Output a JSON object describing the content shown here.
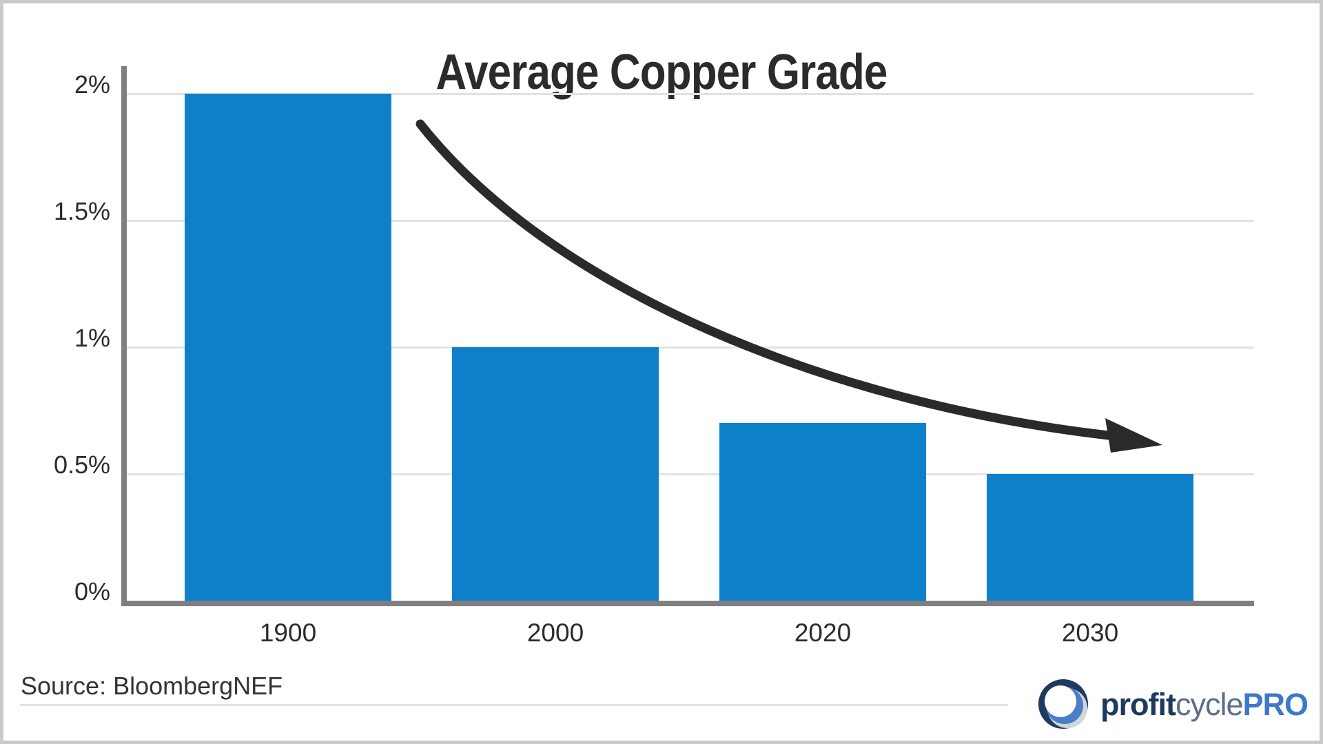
{
  "chart_data": {
    "type": "bar",
    "title": "Average Copper Grade",
    "categories": [
      "1900",
      "2000",
      "2020",
      "2030"
    ],
    "values": [
      2.0,
      1.0,
      0.7,
      0.5
    ],
    "value_unit": "%",
    "xlabel": "",
    "ylabel": "",
    "ylim": [
      0,
      2
    ],
    "y_ticks": [
      {
        "label": "2%",
        "value": 2
      },
      {
        "label": "1.5%",
        "value": 1.5
      },
      {
        "label": "1%",
        "value": 1
      },
      {
        "label": "0.5%",
        "value": 0.5
      },
      {
        "label": "0%",
        "value": 0
      }
    ],
    "grid": "horizontal",
    "legend": "none",
    "bar_color": "#0e80c9",
    "annotation": {
      "type": "curved-arrow",
      "meaning": "declining trend from first bar toward last bar",
      "color": "#2a2a2a"
    }
  },
  "footer": {
    "source": "Source: BloombergNEF",
    "logo": {
      "part1": "profit",
      "part2": "cycle",
      "part3": "PRO",
      "part1_color": "#1d3a5e",
      "part2_color": "#5d6e87",
      "part3_color": "#3d79c9",
      "icon_navy": "#1e3a5f",
      "icon_gray": "#d2d5d9",
      "icon_blue": "#4a7ec7"
    }
  },
  "colors": {
    "title": "#2b2b2b",
    "axis": "#7f7f7f",
    "gridline": "#e2e2e2",
    "tick_label": "#2b2b2b",
    "source_text": "#333333",
    "frame_border": "#c9cbcb",
    "divider": "#e2e3e4",
    "background": "#ffffff"
  }
}
